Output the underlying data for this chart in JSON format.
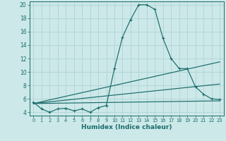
{
  "xlabel": "Humidex (Indice chaleur)",
  "background_color": "#cce8e8",
  "grid_color": "#b0d4d4",
  "line_color": "#1a6b6b",
  "xlim": [
    -0.5,
    23.5
  ],
  "ylim": [
    3.5,
    20.5
  ],
  "yticks": [
    4,
    6,
    8,
    10,
    12,
    14,
    16,
    18,
    20
  ],
  "xticks": [
    0,
    1,
    2,
    3,
    4,
    5,
    6,
    7,
    8,
    9,
    10,
    11,
    12,
    13,
    14,
    15,
    16,
    17,
    18,
    19,
    20,
    21,
    22,
    23
  ],
  "main_series": {
    "x": [
      0,
      1,
      2,
      3,
      4,
      5,
      6,
      7,
      8,
      9,
      10,
      11,
      12,
      13,
      14,
      15,
      16,
      17,
      18,
      19,
      20,
      21,
      22,
      23
    ],
    "y": [
      5.5,
      4.5,
      4.0,
      4.5,
      4.6,
      4.2,
      4.5,
      4.0,
      4.7,
      5.0,
      10.5,
      15.2,
      17.8,
      20.0,
      20.0,
      19.3,
      15.0,
      12.0,
      10.5,
      10.5,
      7.8,
      6.7,
      6.0,
      5.9
    ]
  },
  "ref_lines": [
    {
      "x": [
        0,
        23
      ],
      "y": [
        5.3,
        5.7
      ]
    },
    {
      "x": [
        0,
        23
      ],
      "y": [
        5.3,
        8.2
      ]
    },
    {
      "x": [
        0,
        23
      ],
      "y": [
        5.3,
        11.5
      ]
    }
  ]
}
